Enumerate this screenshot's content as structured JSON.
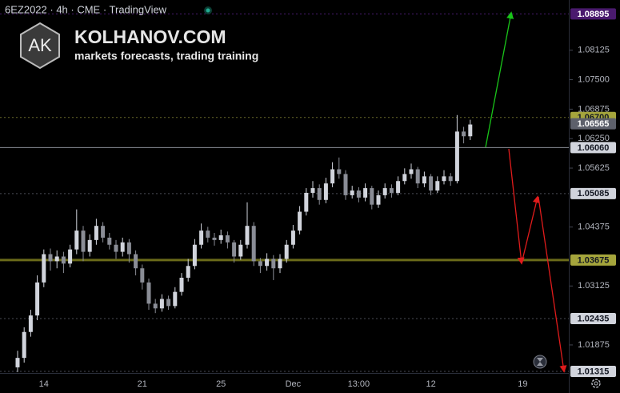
{
  "header": {
    "symbol": "6EZ2022 · 4h · CME · TradingView"
  },
  "watermark": {
    "logo": "AK",
    "brand": "KOLHANOV.COM",
    "tagline": "markets forecasts, trading training"
  },
  "chart_data": {
    "type": "candlestick",
    "categories": [
      null,
      null,
      null,
      null,
      "14",
      null,
      null,
      null,
      null,
      null,
      null,
      null,
      null,
      null,
      null,
      null,
      null,
      null,
      null,
      "21",
      null,
      null,
      null,
      null,
      null,
      null,
      null,
      null,
      null,
      null,
      null,
      "25",
      null,
      null,
      null,
      null,
      null,
      null,
      null,
      null,
      null,
      null,
      "Dec",
      null,
      null,
      null,
      null,
      null,
      null,
      null,
      null,
      null,
      "13:00",
      null,
      null,
      null,
      null,
      null,
      null,
      null,
      null,
      null,
      null,
      "12",
      null,
      null,
      null,
      null,
      null,
      null,
      null,
      null,
      null,
      null,
      null,
      null,
      null,
      "19",
      null,
      null,
      null,
      null,
      null,
      null,
      null
    ],
    "series": [
      {
        "up_color": "#d1d4dc",
        "down_color": "#8a8d96",
        "open": [
          1.014,
          1.016,
          1.0215,
          1.025,
          1.032,
          1.038,
          1.0365,
          1.0375,
          1.036,
          1.039,
          1.043,
          1.0385,
          1.041,
          1.044,
          1.0415,
          1.04,
          1.0385,
          1.0405,
          1.038,
          1.035,
          1.032,
          1.0275,
          1.0265,
          1.0285,
          1.027,
          1.03,
          1.033,
          1.0355,
          1.04,
          1.043,
          1.0415,
          1.041,
          1.042,
          1.0405,
          1.0375,
          1.04,
          1.044,
          1.0365,
          1.0355,
          1.037,
          1.035,
          1.037,
          1.04,
          1.043,
          1.047,
          1.051,
          1.052,
          1.0495,
          1.053,
          1.056,
          1.055,
          1.0505,
          1.0515,
          1.05,
          1.052,
          1.0485,
          1.0505,
          1.052,
          1.051,
          1.0535,
          1.055,
          1.056,
          1.053,
          1.0545,
          1.0515,
          1.0535,
          1.0545,
          1.0535,
          1.064,
          1.063,
          null,
          null,
          null,
          null,
          null,
          null,
          null,
          null,
          null,
          null,
          null,
          null,
          null,
          null,
          null
        ],
        "high": [
          1.0175,
          1.0225,
          1.0262,
          1.0335,
          1.039,
          1.0392,
          1.0388,
          1.0385,
          1.04,
          1.0475,
          1.044,
          1.0422,
          1.0455,
          1.0448,
          1.0425,
          1.041,
          1.0415,
          1.0412,
          1.0388,
          1.0358,
          1.0328,
          1.0285,
          1.0295,
          1.0292,
          1.031,
          1.034,
          1.037,
          1.0412,
          1.0445,
          1.0438,
          1.0425,
          1.0432,
          1.0428,
          1.041,
          1.041,
          1.049,
          1.0448,
          1.0372,
          1.0382,
          1.0378,
          1.038,
          1.041,
          1.0442,
          1.0482,
          1.052,
          1.0535,
          1.0528,
          1.0542,
          1.0575,
          1.0585,
          1.0558,
          1.0525,
          1.0522,
          1.053,
          1.0525,
          1.0515,
          1.053,
          1.0528,
          1.0545,
          1.0562,
          1.0572,
          1.0565,
          1.0555,
          1.055,
          1.0545,
          1.0558,
          1.0552,
          1.0675,
          1.065,
          1.0665,
          null,
          null,
          null,
          null,
          null,
          null,
          null,
          null,
          null,
          null,
          null,
          null,
          null,
          null,
          null
        ],
        "low": [
          1.013,
          1.015,
          1.0205,
          1.024,
          1.031,
          1.0345,
          1.035,
          1.034,
          1.0352,
          1.038,
          1.0365,
          1.0375,
          1.04,
          1.0405,
          1.039,
          1.037,
          1.0375,
          1.0362,
          1.0335,
          1.0305,
          1.0262,
          1.0255,
          1.0258,
          1.0262,
          1.0265,
          1.0292,
          1.0322,
          1.0348,
          1.0392,
          1.0405,
          1.0398,
          1.0402,
          1.0392,
          1.0362,
          1.0368,
          1.0392,
          1.0355,
          1.034,
          1.0345,
          1.0325,
          1.034,
          1.0362,
          1.0392,
          1.0422,
          1.0462,
          1.05,
          1.0485,
          1.0488,
          1.0522,
          1.054,
          1.0495,
          1.0498,
          1.049,
          1.0492,
          1.0475,
          1.0478,
          1.0498,
          1.05,
          1.0505,
          1.0528,
          1.054,
          1.052,
          1.0522,
          1.0505,
          1.051,
          1.0528,
          1.0525,
          1.053,
          1.0615,
          1.0622,
          null,
          null,
          null,
          null,
          null,
          null,
          null,
          null,
          null,
          null,
          null,
          null,
          null,
          null,
          null
        ],
        "close": [
          1.016,
          1.0215,
          1.025,
          1.032,
          1.038,
          1.0365,
          1.0375,
          1.036,
          1.039,
          1.043,
          1.0385,
          1.041,
          1.044,
          1.0415,
          1.04,
          1.0385,
          1.0405,
          1.038,
          1.035,
          1.032,
          1.0275,
          1.0265,
          1.0285,
          1.027,
          1.03,
          1.033,
          1.0355,
          1.04,
          1.043,
          1.0415,
          1.041,
          1.042,
          1.0405,
          1.0375,
          1.04,
          1.044,
          1.0365,
          1.0355,
          1.037,
          1.035,
          1.037,
          1.04,
          1.043,
          1.047,
          1.051,
          1.052,
          1.0495,
          1.053,
          1.056,
          1.055,
          1.0505,
          1.0515,
          1.05,
          1.052,
          1.0485,
          1.0505,
          1.052,
          1.051,
          1.0535,
          1.055,
          1.056,
          1.053,
          1.0545,
          1.0515,
          1.0535,
          1.0545,
          1.0535,
          1.064,
          1.063,
          1.0655,
          null,
          null,
          null,
          null,
          null,
          null,
          null,
          null,
          null,
          null,
          null,
          null,
          null,
          null,
          null
        ]
      }
    ],
    "ylim": [
      1.0128,
      1.0919
    ],
    "yticks": [
      1.08125,
      {
        "value": 1.075,
        "label": "1.07500"
      },
      1.06875,
      {
        "value": 1.0625,
        "label": "1.06250"
      },
      1.05625,
      1.04375,
      1.03125,
      1.01875
    ],
    "levels": [
      {
        "price": 1.08895,
        "color": "#4a1a6e",
        "text_color": "#ffffff",
        "line_color": "#4a1a6e",
        "line_style": "dotted",
        "line_width": 1
      },
      {
        "price": {
          "value": 1.067,
          "label": "1.06700"
        },
        "color": "#a5a53c",
        "text_color": "#131722",
        "line_color": "#6b6b2a",
        "line_style": "dotted",
        "line_width": 1
      },
      {
        "price": 1.06565,
        "color": "#5d606b",
        "text_color": "#ffffff",
        "line_color": null,
        "line_style": "none",
        "line_width": 0
      },
      {
        "price": {
          "value": 1.0606,
          "label": "1.06060"
        },
        "color": "#d1d4dc",
        "text_color": "#131722",
        "line_color": "#8a8d96",
        "line_style": "solid",
        "line_width": 1
      },
      {
        "price": 1.05085,
        "color": "#d1d4dc",
        "text_color": "#131722",
        "line_color": "#4a4d56",
        "line_style": "dotted",
        "line_width": 1
      },
      {
        "price": 1.03675,
        "color": "#a5a53c",
        "text_color": "#131722",
        "line_color": "#6b6b1a",
        "line_style": "solid",
        "line_width": 3
      },
      {
        "price": 1.02435,
        "color": "#d1d4dc",
        "text_color": "#131722",
        "line_color": "#4a4d56",
        "line_style": "dotted",
        "line_width": 1
      },
      {
        "price": 1.01315,
        "color": "#d1d4dc",
        "text_color": "#131722",
        "line_color": "#4a4d56",
        "line_style": "dotted",
        "line_width": 1
      }
    ]
  }
}
